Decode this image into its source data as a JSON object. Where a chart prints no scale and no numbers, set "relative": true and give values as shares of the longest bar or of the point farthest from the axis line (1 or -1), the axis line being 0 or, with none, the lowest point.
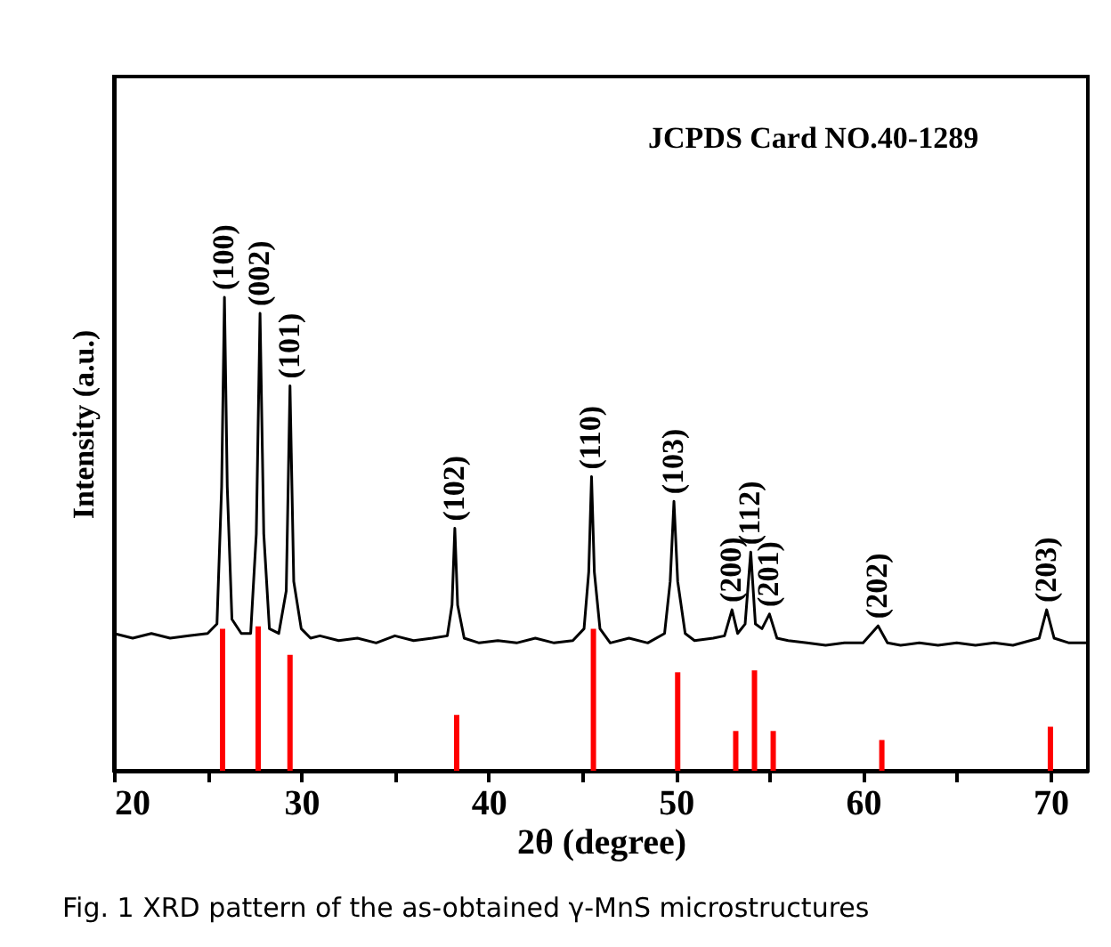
{
  "chart_data": {
    "type": "line",
    "relative": true,
    "xlabel": "2θ (degree)",
    "ylabel": "Intensity (a.u.)",
    "xlim": [
      20,
      72
    ],
    "xticks": [
      20,
      {
        "value": 25,
        "label": null
      },
      30,
      {
        "value": 35,
        "label": null
      },
      40,
      {
        "value": 45,
        "label": null
      },
      50,
      {
        "value": 55,
        "label": null
      },
      60,
      {
        "value": 65,
        "label": null
      },
      70
    ],
    "grid": false,
    "series": [
      {
        "color": "#000000",
        "x": [
          20,
          21,
          22,
          23,
          24,
          25,
          25.5,
          25.75,
          25.9,
          26.05,
          26.3,
          26.8,
          27.3,
          27.6,
          27.8,
          28.0,
          28.3,
          28.8,
          29.2,
          29.4,
          29.6,
          30.0,
          30.5,
          31,
          32,
          33,
          34,
          35,
          36,
          37,
          37.8,
          38.05,
          38.2,
          38.35,
          38.7,
          39.5,
          40.5,
          41.5,
          42.5,
          43.5,
          44.5,
          45.1,
          45.35,
          45.5,
          45.65,
          45.95,
          46.5,
          47.5,
          48.5,
          49.4,
          49.7,
          49.9,
          50.1,
          50.5,
          51,
          52,
          52.6,
          53.0,
          53.3,
          53.7,
          54.0,
          54.25,
          54.6,
          55.0,
          55.4,
          56,
          57,
          58,
          59,
          60,
          60.8,
          61.3,
          62,
          63,
          64,
          65,
          66,
          67,
          68,
          69.4,
          69.8,
          70.2,
          71,
          72
        ],
        "values": [
          0.29,
          0.28,
          0.29,
          0.28,
          0.285,
          0.29,
          0.31,
          0.6,
          1.0,
          0.6,
          0.32,
          0.29,
          0.29,
          0.5,
          0.966,
          0.5,
          0.3,
          0.29,
          0.38,
          0.813,
          0.4,
          0.3,
          0.28,
          0.285,
          0.275,
          0.28,
          0.27,
          0.285,
          0.275,
          0.28,
          0.285,
          0.35,
          0.512,
          0.35,
          0.28,
          0.27,
          0.275,
          0.27,
          0.28,
          0.27,
          0.275,
          0.3,
          0.42,
          0.621,
          0.42,
          0.3,
          0.27,
          0.28,
          0.27,
          0.29,
          0.4,
          0.569,
          0.4,
          0.29,
          0.275,
          0.28,
          0.285,
          0.34,
          0.29,
          0.31,
          0.462,
          0.31,
          0.3,
          0.331,
          0.28,
          0.275,
          0.27,
          0.265,
          0.27,
          0.27,
          0.306,
          0.27,
          0.265,
          0.27,
          0.265,
          0.27,
          0.265,
          0.27,
          0.265,
          0.28,
          0.34,
          0.28,
          0.27,
          0.27
        ]
      },
      {
        "type": "bar",
        "color": "#ff0000",
        "x": [
          25.8,
          27.7,
          29.4,
          38.3,
          45.6,
          50.1,
          53.2,
          54.2,
          55.2,
          61.0,
          70.0
        ],
        "values": [
          0.3,
          0.305,
          0.245,
          0.118,
          0.3,
          0.208,
          0.084,
          0.212,
          0.084,
          0.065,
          0.093
        ]
      }
    ],
    "annotations": [
      {
        "text": "(100)",
        "x": 25.9,
        "y": 1.0
      },
      {
        "text": "(002)",
        "x": 27.8,
        "y": 0.966
      },
      {
        "text": "(101)",
        "x": 29.4,
        "y": 0.813
      },
      {
        "text": "(102)",
        "x": 38.2,
        "y": 0.512
      },
      {
        "text": "(110)",
        "x": 45.5,
        "y": 0.621
      },
      {
        "text": "(103)",
        "x": 49.9,
        "y": 0.569
      },
      {
        "text": "(200)",
        "x": 53.0,
        "y": 0.34
      },
      {
        "text": "(112)",
        "x": 54.0,
        "y": 0.462
      },
      {
        "text": "(201)",
        "x": 55.0,
        "y": 0.331
      },
      {
        "text": "(202)",
        "x": 60.8,
        "y": 0.306
      },
      {
        "text": "(203)",
        "x": 69.8,
        "y": 0.34
      },
      "JCPDS Card NO.40-1289",
      "Fig. 1 XRD pattern of the as-obtained γ-MnS microstructures"
    ]
  }
}
